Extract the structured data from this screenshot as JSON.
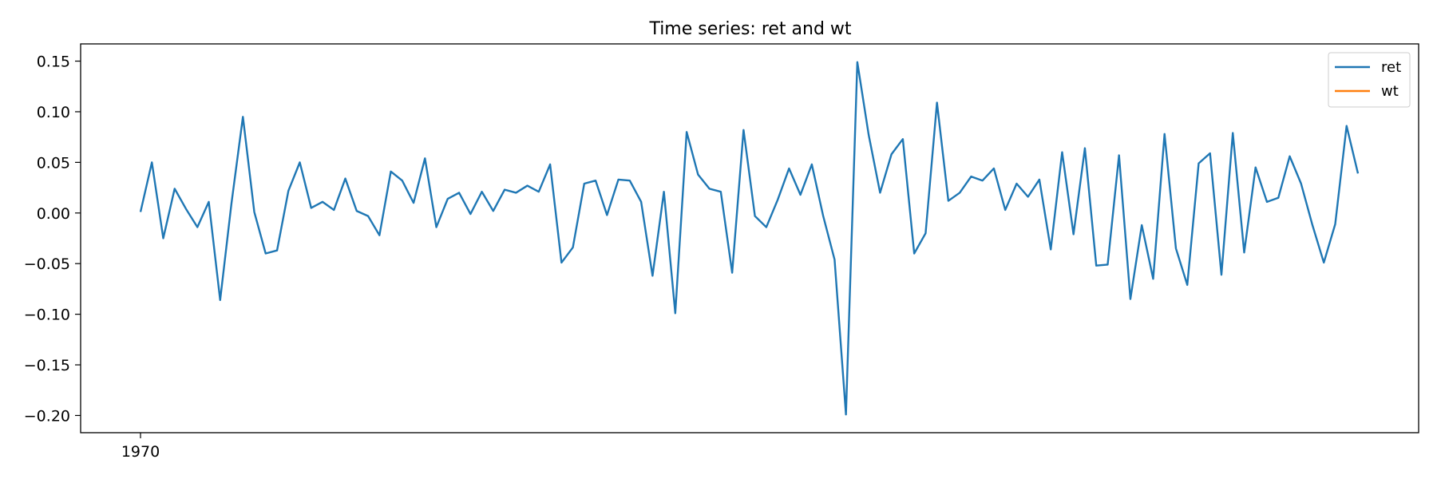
{
  "chart_data": {
    "type": "line",
    "title": "Time series: ret and wt",
    "xlabel": "",
    "ylabel": "",
    "x_tick_labels": [
      "1970"
    ],
    "y_ticks": [
      0.15,
      0.1,
      0.05,
      0.0,
      -0.05,
      -0.1,
      -0.15,
      -0.2
    ],
    "y_tick_labels": [
      "0.15",
      "0.10",
      "0.05",
      "0.00",
      "−0.05",
      "−0.10",
      "−0.15",
      "−0.20"
    ],
    "ylim": [
      -0.217,
      0.167
    ],
    "legend_position": "top-right",
    "grid": false,
    "series": [
      {
        "name": "ret",
        "color": "#1f77b4",
        "values": [
          0.001,
          0.05,
          -0.025,
          0.024,
          0.004,
          -0.014,
          0.011,
          -0.086,
          0.01,
          0.095,
          0.001,
          -0.04,
          -0.037,
          0.022,
          0.05,
          0.005,
          0.011,
          0.003,
          0.034,
          0.002,
          -0.003,
          -0.022,
          0.041,
          0.032,
          0.01,
          0.054,
          -0.014,
          0.014,
          0.02,
          -0.001,
          0.021,
          0.002,
          0.023,
          0.02,
          0.027,
          0.021,
          0.048,
          -0.049,
          -0.034,
          0.029,
          0.032,
          -0.002,
          0.033,
          0.032,
          0.011,
          -0.062,
          0.021,
          -0.099,
          0.08,
          0.038,
          0.024,
          0.021,
          -0.059,
          0.082,
          -0.003,
          -0.014,
          0.013,
          0.044,
          0.018,
          0.048,
          -0.003,
          -0.046,
          -0.199,
          0.149,
          0.077,
          0.02,
          0.058,
          0.073,
          -0.04,
          -0.02,
          0.109,
          0.012,
          0.02,
          0.036,
          0.032,
          0.044,
          0.003,
          0.029,
          0.016,
          0.033,
          -0.036,
          0.06,
          -0.021,
          0.064,
          -0.052,
          -0.051,
          0.057,
          -0.085,
          -0.012,
          -0.065,
          0.078,
          -0.035,
          -0.071,
          0.049,
          0.059,
          -0.061,
          0.079,
          -0.039,
          0.045,
          0.011,
          0.015,
          0.056,
          0.029,
          -0.012,
          -0.049,
          -0.011,
          0.086,
          0.039
        ]
      },
      {
        "name": "wt",
        "color": "#ff7f0e",
        "values": []
      }
    ]
  }
}
